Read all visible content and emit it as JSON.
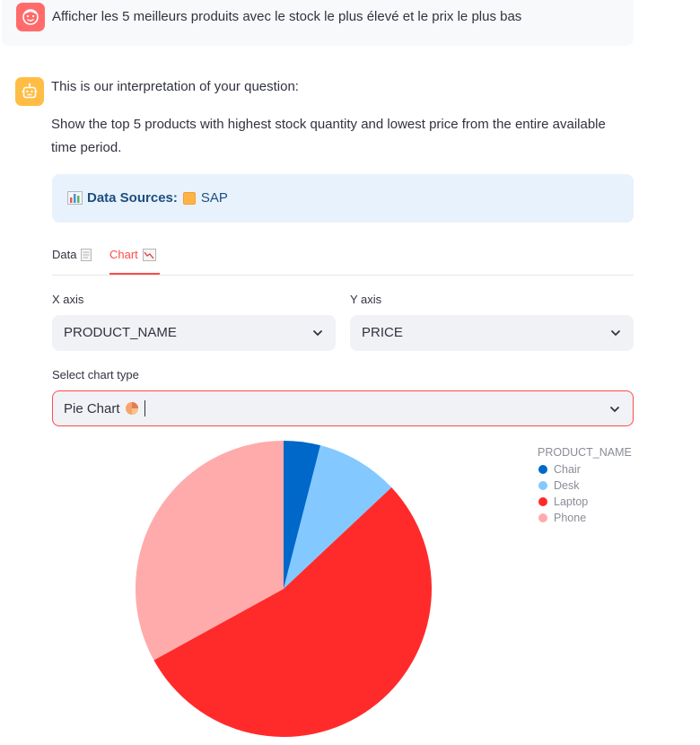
{
  "user_message": "Afficher les 5 meilleurs produits avec le stock le plus élevé et le prix le plus bas",
  "assistant": {
    "intro": "This is our interpretation of your question:",
    "interpretation": "Show the top 5 products with highest stock quantity and lowest price from the entire available time period.",
    "sources_label": "Data Sources:",
    "sources_value": "SAP"
  },
  "tabs": [
    {
      "label": "Data",
      "icon": "document-icon"
    },
    {
      "label": "Chart",
      "icon": "chart-icon",
      "active": true
    }
  ],
  "controls": {
    "x_axis_label": "X axis",
    "x_axis_value": "PRODUCT_NAME",
    "y_axis_label": "Y axis",
    "y_axis_value": "PRICE",
    "chart_type_label": "Select chart type",
    "chart_type_value": "Pie Chart"
  },
  "chart_data": {
    "type": "pie",
    "legend_title": "PRODUCT_NAME",
    "legend_position": "top-right",
    "slices": [
      {
        "label": "Chair",
        "value": 4,
        "color": "#0068c9"
      },
      {
        "label": "Desk",
        "value": 9,
        "color": "#83c9ff"
      },
      {
        "label": "Laptop",
        "value": 54,
        "color": "#ff2b2b"
      },
      {
        "label": "Phone",
        "value": 33,
        "color": "#ffabab"
      }
    ]
  }
}
